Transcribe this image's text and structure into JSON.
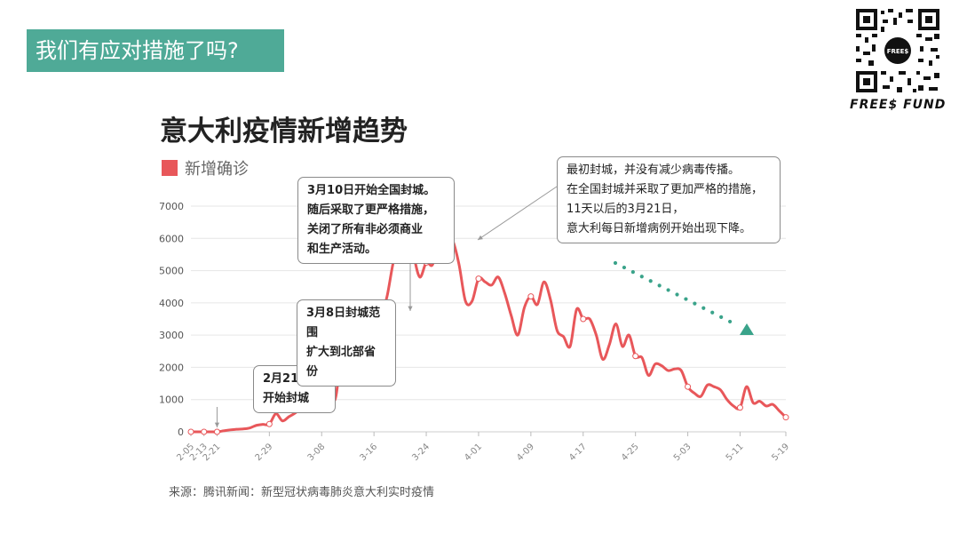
{
  "slide": {
    "title": "我们有应对措施了吗?",
    "brand": "FREE$ FUND",
    "brand_color": "#4faa97",
    "qr_center_text": "FREE$",
    "source": "来源：腾讯新闻：新型冠状病毒肺炎意大利实时疫情"
  },
  "chart_data": {
    "type": "line",
    "title": "意大利疫情新增趋势",
    "series": [
      {
        "name": "新增确诊",
        "color": "#e8575a",
        "values": [
          {
            "x": "2-05",
            "y": 0
          },
          {
            "x": "2-09",
            "y": 0
          },
          {
            "x": "2-13",
            "y": 0
          },
          {
            "x": "2-17",
            "y": 0
          },
          {
            "x": "2-21",
            "y": 0
          },
          {
            "x": "2-22",
            "y": 30
          },
          {
            "x": "2-23",
            "y": 60
          },
          {
            "x": "2-24",
            "y": 80
          },
          {
            "x": "2-25",
            "y": 90
          },
          {
            "x": "2-26",
            "y": 120
          },
          {
            "x": "2-27",
            "y": 200
          },
          {
            "x": "2-28",
            "y": 230
          },
          {
            "x": "2-29",
            "y": 240
          },
          {
            "x": "3-01",
            "y": 560
          },
          {
            "x": "3-02",
            "y": 340
          },
          {
            "x": "3-03",
            "y": 470
          },
          {
            "x": "3-04",
            "y": 590
          },
          {
            "x": "3-05",
            "y": 780
          },
          {
            "x": "3-06",
            "y": 780
          },
          {
            "x": "3-07",
            "y": 1250
          },
          {
            "x": "3-08",
            "y": 1490
          },
          {
            "x": "3-09",
            "y": 1800
          },
          {
            "x": "3-10",
            "y": 980
          },
          {
            "x": "3-11",
            "y": 2300
          },
          {
            "x": "3-12",
            "y": 2650
          },
          {
            "x": "3-13",
            "y": 2550
          },
          {
            "x": "3-14",
            "y": 3500
          },
          {
            "x": "3-15",
            "y": 3600
          },
          {
            "x": "3-16",
            "y": 3200
          },
          {
            "x": "3-17",
            "y": 3500
          },
          {
            "x": "3-18",
            "y": 4200
          },
          {
            "x": "3-19",
            "y": 5300
          },
          {
            "x": "3-20",
            "y": 5900
          },
          {
            "x": "3-21",
            "y": 6550
          },
          {
            "x": "3-22",
            "y": 5550
          },
          {
            "x": "3-23",
            "y": 4800
          },
          {
            "x": "3-24",
            "y": 5250
          },
          {
            "x": "3-25",
            "y": 5200
          },
          {
            "x": "3-26",
            "y": 6150
          },
          {
            "x": "3-27",
            "y": 5950
          },
          {
            "x": "3-28",
            "y": 5950
          },
          {
            "x": "3-29",
            "y": 5200
          },
          {
            "x": "3-30",
            "y": 4050
          },
          {
            "x": "3-31",
            "y": 4050
          },
          {
            "x": "4-01",
            "y": 4750
          },
          {
            "x": "4-02",
            "y": 4650
          },
          {
            "x": "4-03",
            "y": 4550
          },
          {
            "x": "4-04",
            "y": 4800
          },
          {
            "x": "4-05",
            "y": 4300
          },
          {
            "x": "4-06",
            "y": 3600
          },
          {
            "x": "4-07",
            "y": 3000
          },
          {
            "x": "4-08",
            "y": 3850
          },
          {
            "x": "4-09",
            "y": 4200
          },
          {
            "x": "4-10",
            "y": 3950
          },
          {
            "x": "4-11",
            "y": 4650
          },
          {
            "x": "4-12",
            "y": 4100
          },
          {
            "x": "4-13",
            "y": 3150
          },
          {
            "x": "4-14",
            "y": 2950
          },
          {
            "x": "4-15",
            "y": 2650
          },
          {
            "x": "4-16",
            "y": 3800
          },
          {
            "x": "4-17",
            "y": 3500
          },
          {
            "x": "4-18",
            "y": 3500
          },
          {
            "x": "4-19",
            "y": 3000
          },
          {
            "x": "4-20",
            "y": 2250
          },
          {
            "x": "4-21",
            "y": 2700
          },
          {
            "x": "4-22",
            "y": 3350
          },
          {
            "x": "4-23",
            "y": 2650
          },
          {
            "x": "4-24",
            "y": 3000
          },
          {
            "x": "4-25",
            "y": 2350
          },
          {
            "x": "4-26",
            "y": 2300
          },
          {
            "x": "4-27",
            "y": 1750
          },
          {
            "x": "4-28",
            "y": 2100
          },
          {
            "x": "4-29",
            "y": 2050
          },
          {
            "x": "4-30",
            "y": 1900
          },
          {
            "x": "5-01",
            "y": 1950
          },
          {
            "x": "5-02",
            "y": 1900
          },
          {
            "x": "5-03",
            "y": 1400
          },
          {
            "x": "5-04",
            "y": 1200
          },
          {
            "x": "5-05",
            "y": 1100
          },
          {
            "x": "5-06",
            "y": 1450
          },
          {
            "x": "5-07",
            "y": 1400
          },
          {
            "x": "5-08",
            "y": 1300
          },
          {
            "x": "5-09",
            "y": 1000
          },
          {
            "x": "5-10",
            "y": 800
          },
          {
            "x": "5-11",
            "y": 750
          },
          {
            "x": "5-12",
            "y": 1400
          },
          {
            "x": "5-13",
            "y": 900
          },
          {
            "x": "5-14",
            "y": 950
          },
          {
            "x": "5-15",
            "y": 800
          },
          {
            "x": "5-16",
            "y": 850
          },
          {
            "x": "5-17",
            "y": 650
          },
          {
            "x": "5-18",
            "y": 450
          }
        ]
      }
    ],
    "highlighted_points": [
      "2-05",
      "2-13",
      "2-21",
      "2-29",
      "3-08",
      "3-16",
      "3-24",
      "4-01",
      "4-09",
      "4-17",
      "4-25",
      "5-03",
      "5-11",
      "5-18"
    ],
    "x_ticks": [
      "2-05",
      "2-13",
      "2-21",
      "2-29",
      "3-08",
      "3-16",
      "3-24",
      "4-01",
      "4-09",
      "4-17",
      "4-25",
      "5-03",
      "5-11",
      "5-19"
    ],
    "y_ticks": [
      0,
      1000,
      2000,
      3000,
      4000,
      5000,
      6000,
      7000
    ],
    "ylim": [
      0,
      7000
    ],
    "grid": true,
    "legend": "top-left",
    "annotations": [
      {
        "id": "feb21",
        "lines": [
          "2月21日",
          "开始封城"
        ],
        "bold": true,
        "target_x": "2-21"
      },
      {
        "id": "mar8",
        "lines": [
          "3月8日封城范围",
          "扩大到北部省份"
        ],
        "bold": true,
        "target_x": "3-08"
      },
      {
        "id": "mar10",
        "lines": [
          "3月10日开始全国封城。",
          "随后采取了更严格措施，",
          "关闭了所有非必须商业",
          "和生产活动。"
        ],
        "bold": true,
        "target_x": "3-10"
      },
      {
        "id": "mar21",
        "lines": [
          "最初封城，并没有减少病毒传播。",
          "在全国封城并采取了更加严格的措施，",
          "11天以后的3月21日，",
          "意大利每日新增病例开始出现下降。"
        ],
        "bold": false,
        "target_x": "3-21"
      }
    ],
    "trend_arrow_color": "#3aa38a"
  }
}
